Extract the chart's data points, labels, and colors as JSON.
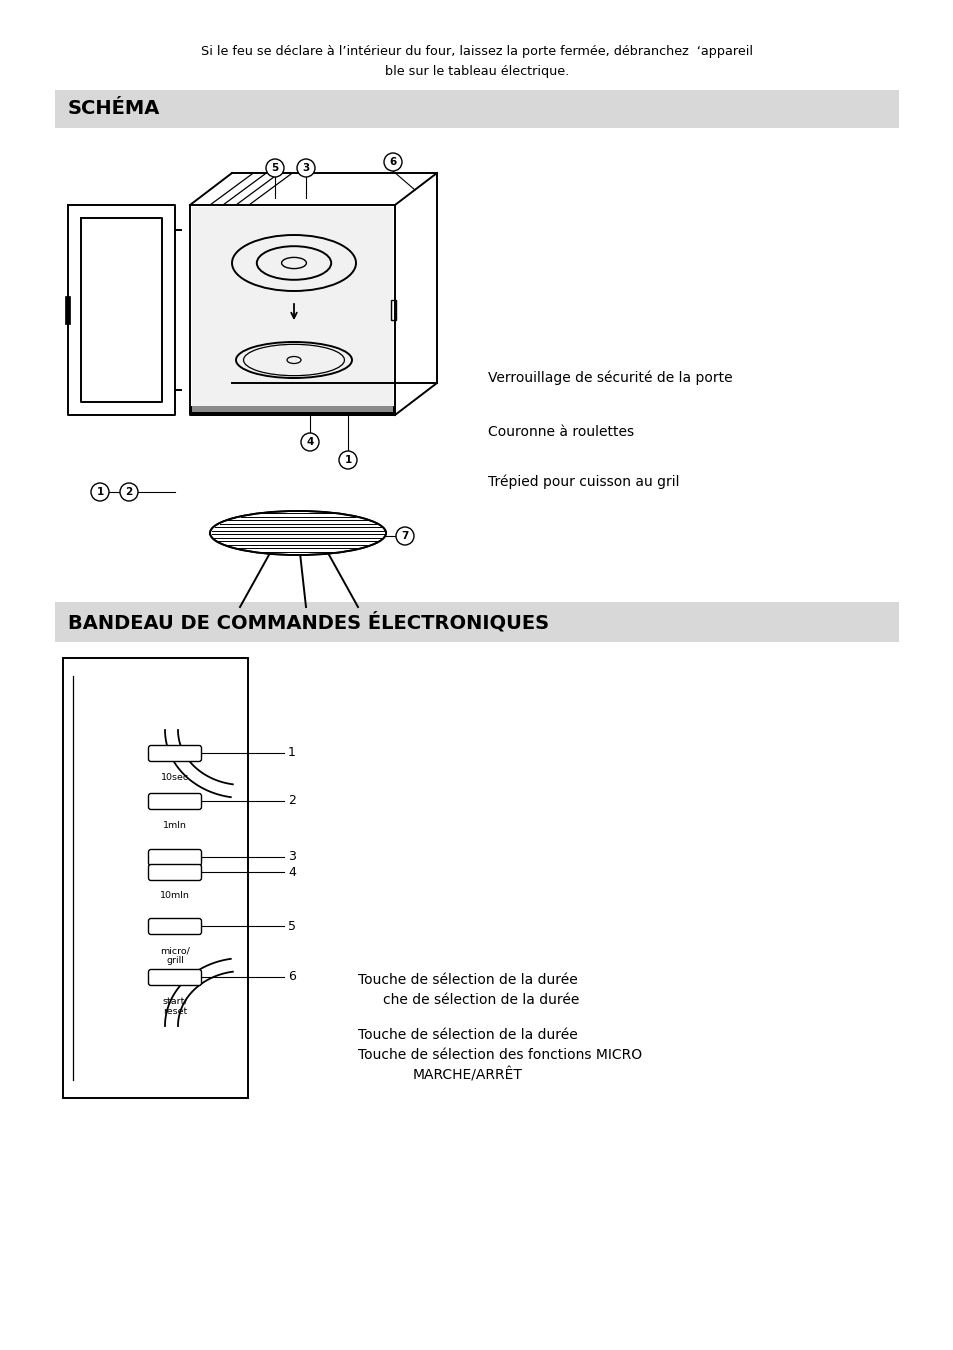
{
  "page_bg": "#ffffff",
  "warning_text_line1": "Si le feu se déclare à l’intérieur du four, laissez la porte fermée, débranchez  ‘appareil",
  "warning_text_line2": "ble sur le tableau électrique.",
  "section1_title": "SCHÉMA",
  "section2_title": "BANDEAU DE COMMANDES ÉLECTRONIQUES",
  "right_label1": "Verrouillage de sécurité de la porte",
  "right_label2": "Couronne à roulettes",
  "right_label3": "Trépied pour cuisson au gril",
  "bandeau_label1": "Touche de sélection de la durée",
  "bandeau_label2": "    che de sélection de la durée",
  "bandeau_label3": "Touche de sélection de la durée",
  "bandeau_label4": "Touche de sélection des fonctions MICRO",
  "bandeau_label5": "MARCHE/ARRÊT",
  "section_header_bg": "#d8d8d8",
  "text_color": "#000000"
}
